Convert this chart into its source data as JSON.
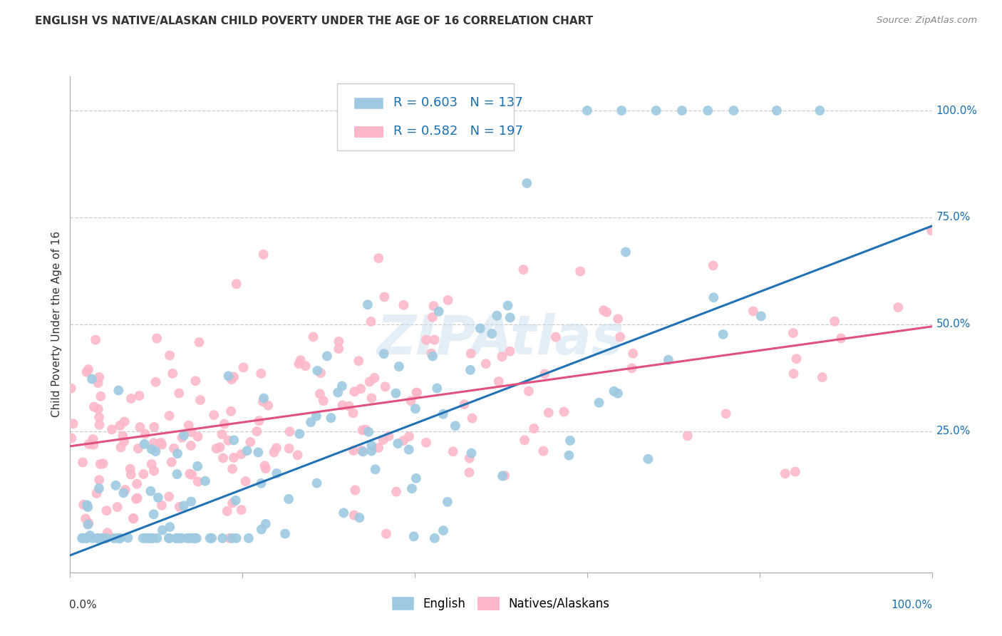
{
  "title": "ENGLISH VS NATIVE/ALASKAN CHILD POVERTY UNDER THE AGE OF 16 CORRELATION CHART",
  "source": "Source: ZipAtlas.com",
  "ylabel": "Child Poverty Under the Age of 16",
  "ytick_labels": [
    "25.0%",
    "50.0%",
    "75.0%",
    "100.0%"
  ],
  "ytick_values": [
    0.25,
    0.5,
    0.75,
    1.0
  ],
  "legend_english_R": "0.603",
  "legend_english_N": "137",
  "legend_native_R": "0.582",
  "legend_native_N": "197",
  "english_color": "#9ecae1",
  "native_color": "#fcb8c8",
  "english_line_color": "#2171b5",
  "native_line_color": "#e05080",
  "background_color": "#ffffff",
  "grid_color": "#cccccc",
  "eng_slope": 0.77,
  "eng_intercept": -0.04,
  "nat_slope": 0.28,
  "nat_intercept": 0.215,
  "xlim": [
    0.0,
    1.0
  ],
  "ylim": [
    -0.08,
    1.08
  ]
}
